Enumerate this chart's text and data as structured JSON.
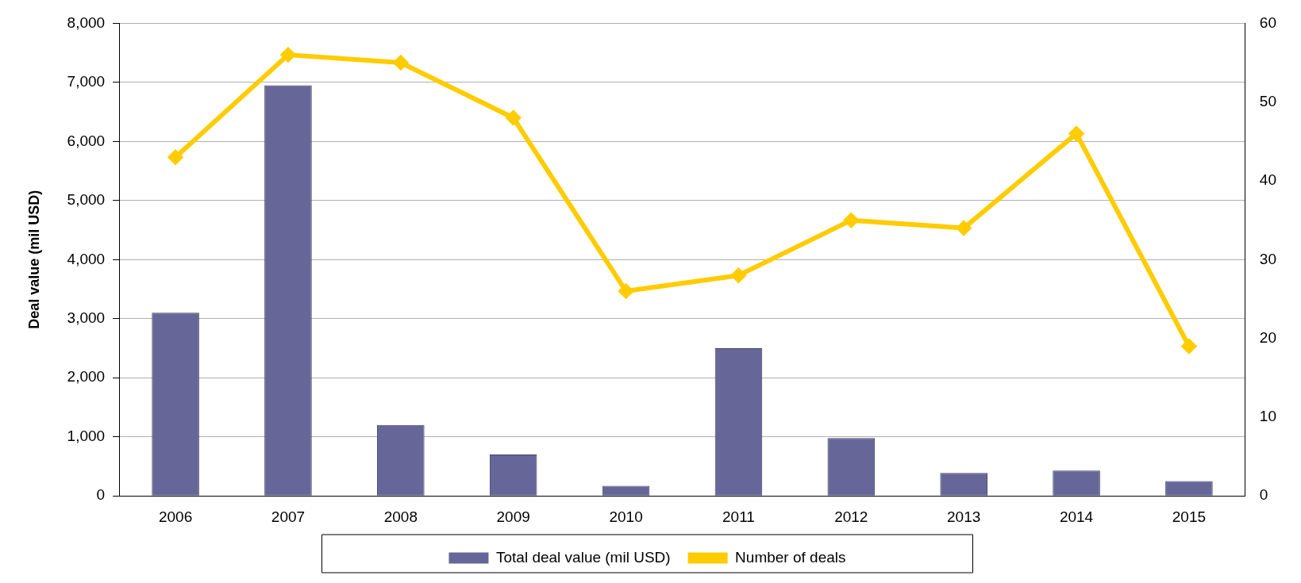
{
  "chart_data": {
    "type": "bar",
    "ylabel": "Deal value (mil USD)",
    "categories": [
      "2006",
      "2007",
      "2008",
      "2009",
      "2010",
      "2011",
      "2012",
      "2013",
      "2014",
      "2015"
    ],
    "series": [
      {
        "name": "Total deal value (mil USD)",
        "color": "#666699",
        "values": [
          3100,
          6950,
          1200,
          700,
          170,
          2500,
          980,
          390,
          430,
          250
        ]
      },
      {
        "name": "Number of deals",
        "type": "line",
        "axis": "y2",
        "color": "#ffcc00",
        "marker": "diamond",
        "values": [
          43,
          56,
          55,
          48,
          26,
          28,
          35,
          34,
          46,
          19
        ]
      }
    ],
    "ylim": [
      0,
      8000
    ],
    "yticks": [
      {
        "value": 0,
        "label": "0"
      },
      {
        "value": 1000,
        "label": "1,000"
      },
      {
        "value": 2000,
        "label": "2,000"
      },
      {
        "value": 3000,
        "label": "3,000"
      },
      {
        "value": 4000,
        "label": "4,000"
      },
      {
        "value": 5000,
        "label": "5,000"
      },
      {
        "value": 6000,
        "label": "6,000"
      },
      {
        "value": 7000,
        "label": "7,000"
      },
      {
        "value": 8000,
        "label": "8,000"
      }
    ],
    "y2lim": [
      0,
      60
    ],
    "y2ticks": [
      0,
      10,
      20,
      30,
      40,
      50,
      60
    ],
    "grid": "y",
    "legend": "bottom"
  }
}
